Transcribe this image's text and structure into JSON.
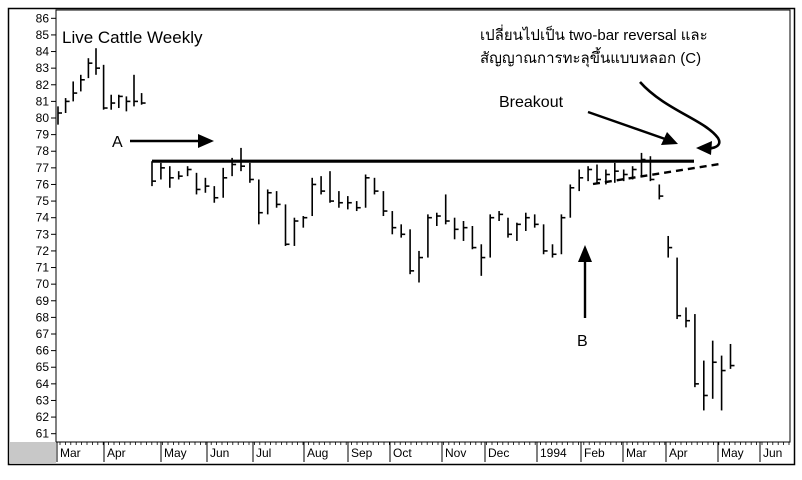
{
  "chart_data": {
    "type": "bar",
    "title": "Live Cattle Weekly",
    "ylim": [
      60.5,
      86.5
    ],
    "yticks": [
      61,
      62,
      63,
      64,
      65,
      66,
      67,
      68,
      69,
      70,
      71,
      72,
      73,
      74,
      75,
      76,
      77,
      78,
      79,
      80,
      81,
      82,
      83,
      84,
      85,
      86
    ],
    "xlabels": [
      "Mar",
      "Apr",
      "May",
      "Jun",
      "Jul",
      "Aug",
      "Sep",
      "Oct",
      "Nov",
      "Dec",
      "1994",
      "Feb",
      "Mar",
      "Apr",
      "May",
      "Jun"
    ],
    "grid": false,
    "legend": "none",
    "bars": [
      {
        "h": 80.7,
        "l": 79.6,
        "c": 80.3
      },
      {
        "h": 81.2,
        "l": 80.3,
        "c": 81.0
      },
      {
        "h": 82.2,
        "l": 81.0,
        "c": 81.5
      },
      {
        "h": 82.6,
        "l": 81.6,
        "c": 82.3
      },
      {
        "h": 83.6,
        "l": 82.4,
        "c": 83.3
      },
      {
        "h": 84.2,
        "l": 82.6,
        "c": 83.0
      },
      {
        "h": 83.2,
        "l": 80.5,
        "c": 80.6
      },
      {
        "h": 81.4,
        "l": 80.5,
        "c": 80.9
      },
      {
        "h": 81.4,
        "l": 80.6,
        "c": 81.3
      },
      {
        "h": 81.3,
        "l": 80.4,
        "c": 81.0
      },
      {
        "h": 82.6,
        "l": 80.7,
        "c": 81.0
      },
      {
        "h": 81.5,
        "l": 80.8,
        "c": 80.9
      },
      {
        "h": 77.4,
        "l": 75.9,
        "c": 76.2
      },
      {
        "h": 77.3,
        "l": 76.3,
        "c": 77.0
      },
      {
        "h": 77.1,
        "l": 75.8,
        "c": 76.4
      },
      {
        "h": 76.8,
        "l": 76.3,
        "c": 76.5
      },
      {
        "h": 77.1,
        "l": 76.5,
        "c": 76.9
      },
      {
        "h": 76.7,
        "l": 75.4,
        "c": 75.7
      },
      {
        "h": 76.4,
        "l": 75.5,
        "c": 75.9
      },
      {
        "h": 75.9,
        "l": 74.9,
        "c": 75.2
      },
      {
        "h": 77.0,
        "l": 75.2,
        "c": 76.4
      },
      {
        "h": 77.6,
        "l": 76.5,
        "c": 77.2
      },
      {
        "h": 78.2,
        "l": 76.8,
        "c": 77.1
      },
      {
        "h": 77.3,
        "l": 76.1,
        "c": 76.3
      },
      {
        "h": 76.3,
        "l": 73.6,
        "c": 74.3
      },
      {
        "h": 75.7,
        "l": 74.2,
        "c": 75.5
      },
      {
        "h": 75.6,
        "l": 74.6,
        "c": 74.8
      },
      {
        "h": 74.8,
        "l": 72.3,
        "c": 72.4
      },
      {
        "h": 74.0,
        "l": 72.3,
        "c": 73.8
      },
      {
        "h": 74.1,
        "l": 73.4,
        "c": 74.0
      },
      {
        "h": 76.4,
        "l": 74.1,
        "c": 76.0
      },
      {
        "h": 76.5,
        "l": 75.4,
        "c": 75.6
      },
      {
        "h": 76.8,
        "l": 74.9,
        "c": 75.0
      },
      {
        "h": 75.6,
        "l": 74.6,
        "c": 74.9
      },
      {
        "h": 75.3,
        "l": 74.5,
        "c": 74.9
      },
      {
        "h": 75.0,
        "l": 74.4,
        "c": 74.6
      },
      {
        "h": 76.6,
        "l": 74.6,
        "c": 76.4
      },
      {
        "h": 76.4,
        "l": 75.4,
        "c": 75.6
      },
      {
        "h": 75.6,
        "l": 74.1,
        "c": 74.4
      },
      {
        "h": 74.4,
        "l": 73.0,
        "c": 73.4
      },
      {
        "h": 73.6,
        "l": 72.8,
        "c": 73.0
      },
      {
        "h": 73.3,
        "l": 70.6,
        "c": 70.8
      },
      {
        "h": 72.0,
        "l": 70.1,
        "c": 71.6
      },
      {
        "h": 74.2,
        "l": 71.6,
        "c": 74.0
      },
      {
        "h": 74.3,
        "l": 73.5,
        "c": 74.1
      },
      {
        "h": 75.4,
        "l": 73.6,
        "c": 73.8
      },
      {
        "h": 74.0,
        "l": 72.7,
        "c": 73.3
      },
      {
        "h": 73.8,
        "l": 72.6,
        "c": 73.4
      },
      {
        "h": 73.5,
        "l": 72.1,
        "c": 72.2
      },
      {
        "h": 72.4,
        "l": 70.5,
        "c": 71.6
      },
      {
        "h": 74.2,
        "l": 71.6,
        "c": 74.0
      },
      {
        "h": 74.4,
        "l": 73.8,
        "c": 74.2
      },
      {
        "h": 74.0,
        "l": 72.8,
        "c": 73.0
      },
      {
        "h": 73.7,
        "l": 72.6,
        "c": 73.6
      },
      {
        "h": 74.3,
        "l": 73.2,
        "c": 74.0
      },
      {
        "h": 74.2,
        "l": 73.4,
        "c": 73.6
      },
      {
        "h": 73.6,
        "l": 71.8,
        "c": 72.0
      },
      {
        "h": 72.4,
        "l": 71.6,
        "c": 71.8
      },
      {
        "h": 74.2,
        "l": 71.8,
        "c": 74.0
      },
      {
        "h": 76.0,
        "l": 74.0,
        "c": 75.8
      },
      {
        "h": 76.9,
        "l": 75.6,
        "c": 76.4
      },
      {
        "h": 77.1,
        "l": 76.2,
        "c": 76.9
      },
      {
        "h": 77.2,
        "l": 76.1,
        "c": 76.3
      },
      {
        "h": 76.9,
        "l": 76.0,
        "c": 76.6
      },
      {
        "h": 77.3,
        "l": 76.1,
        "c": 76.8
      },
      {
        "h": 76.9,
        "l": 76.2,
        "c": 76.6
      },
      {
        "h": 77.1,
        "l": 76.3,
        "c": 76.9
      },
      {
        "h": 77.9,
        "l": 76.5,
        "c": 77.5
      },
      {
        "h": 77.7,
        "l": 76.2,
        "c": 76.3
      },
      {
        "h": 76.0,
        "l": 75.1,
        "c": 75.3
      },
      {
        "h": 72.9,
        "l": 71.6,
        "c": 72.2
      },
      {
        "h": 71.6,
        "l": 67.9,
        "c": 68.1
      },
      {
        "h": 68.6,
        "l": 67.4,
        "c": 67.8
      },
      {
        "h": 68.2,
        "l": 63.8,
        "c": 64.0
      },
      {
        "h": 65.4,
        "l": 62.4,
        "c": 63.3
      },
      {
        "h": 66.6,
        "l": 63.1,
        "c": 65.3
      },
      {
        "h": 65.7,
        "l": 62.4,
        "c": 64.8
      },
      {
        "h": 66.4,
        "l": 64.9,
        "c": 65.1
      }
    ],
    "annotations": {
      "a_label": "A",
      "b_label": "B",
      "breakout_label": "Breakout",
      "c_note_line1": "เปลี่ยนไปเป็น two-bar reversal และ",
      "c_note_line2": "สัญญาณการทะลุขึ้นแบบหลอก (C)"
    },
    "resistance_level": 77.4
  }
}
